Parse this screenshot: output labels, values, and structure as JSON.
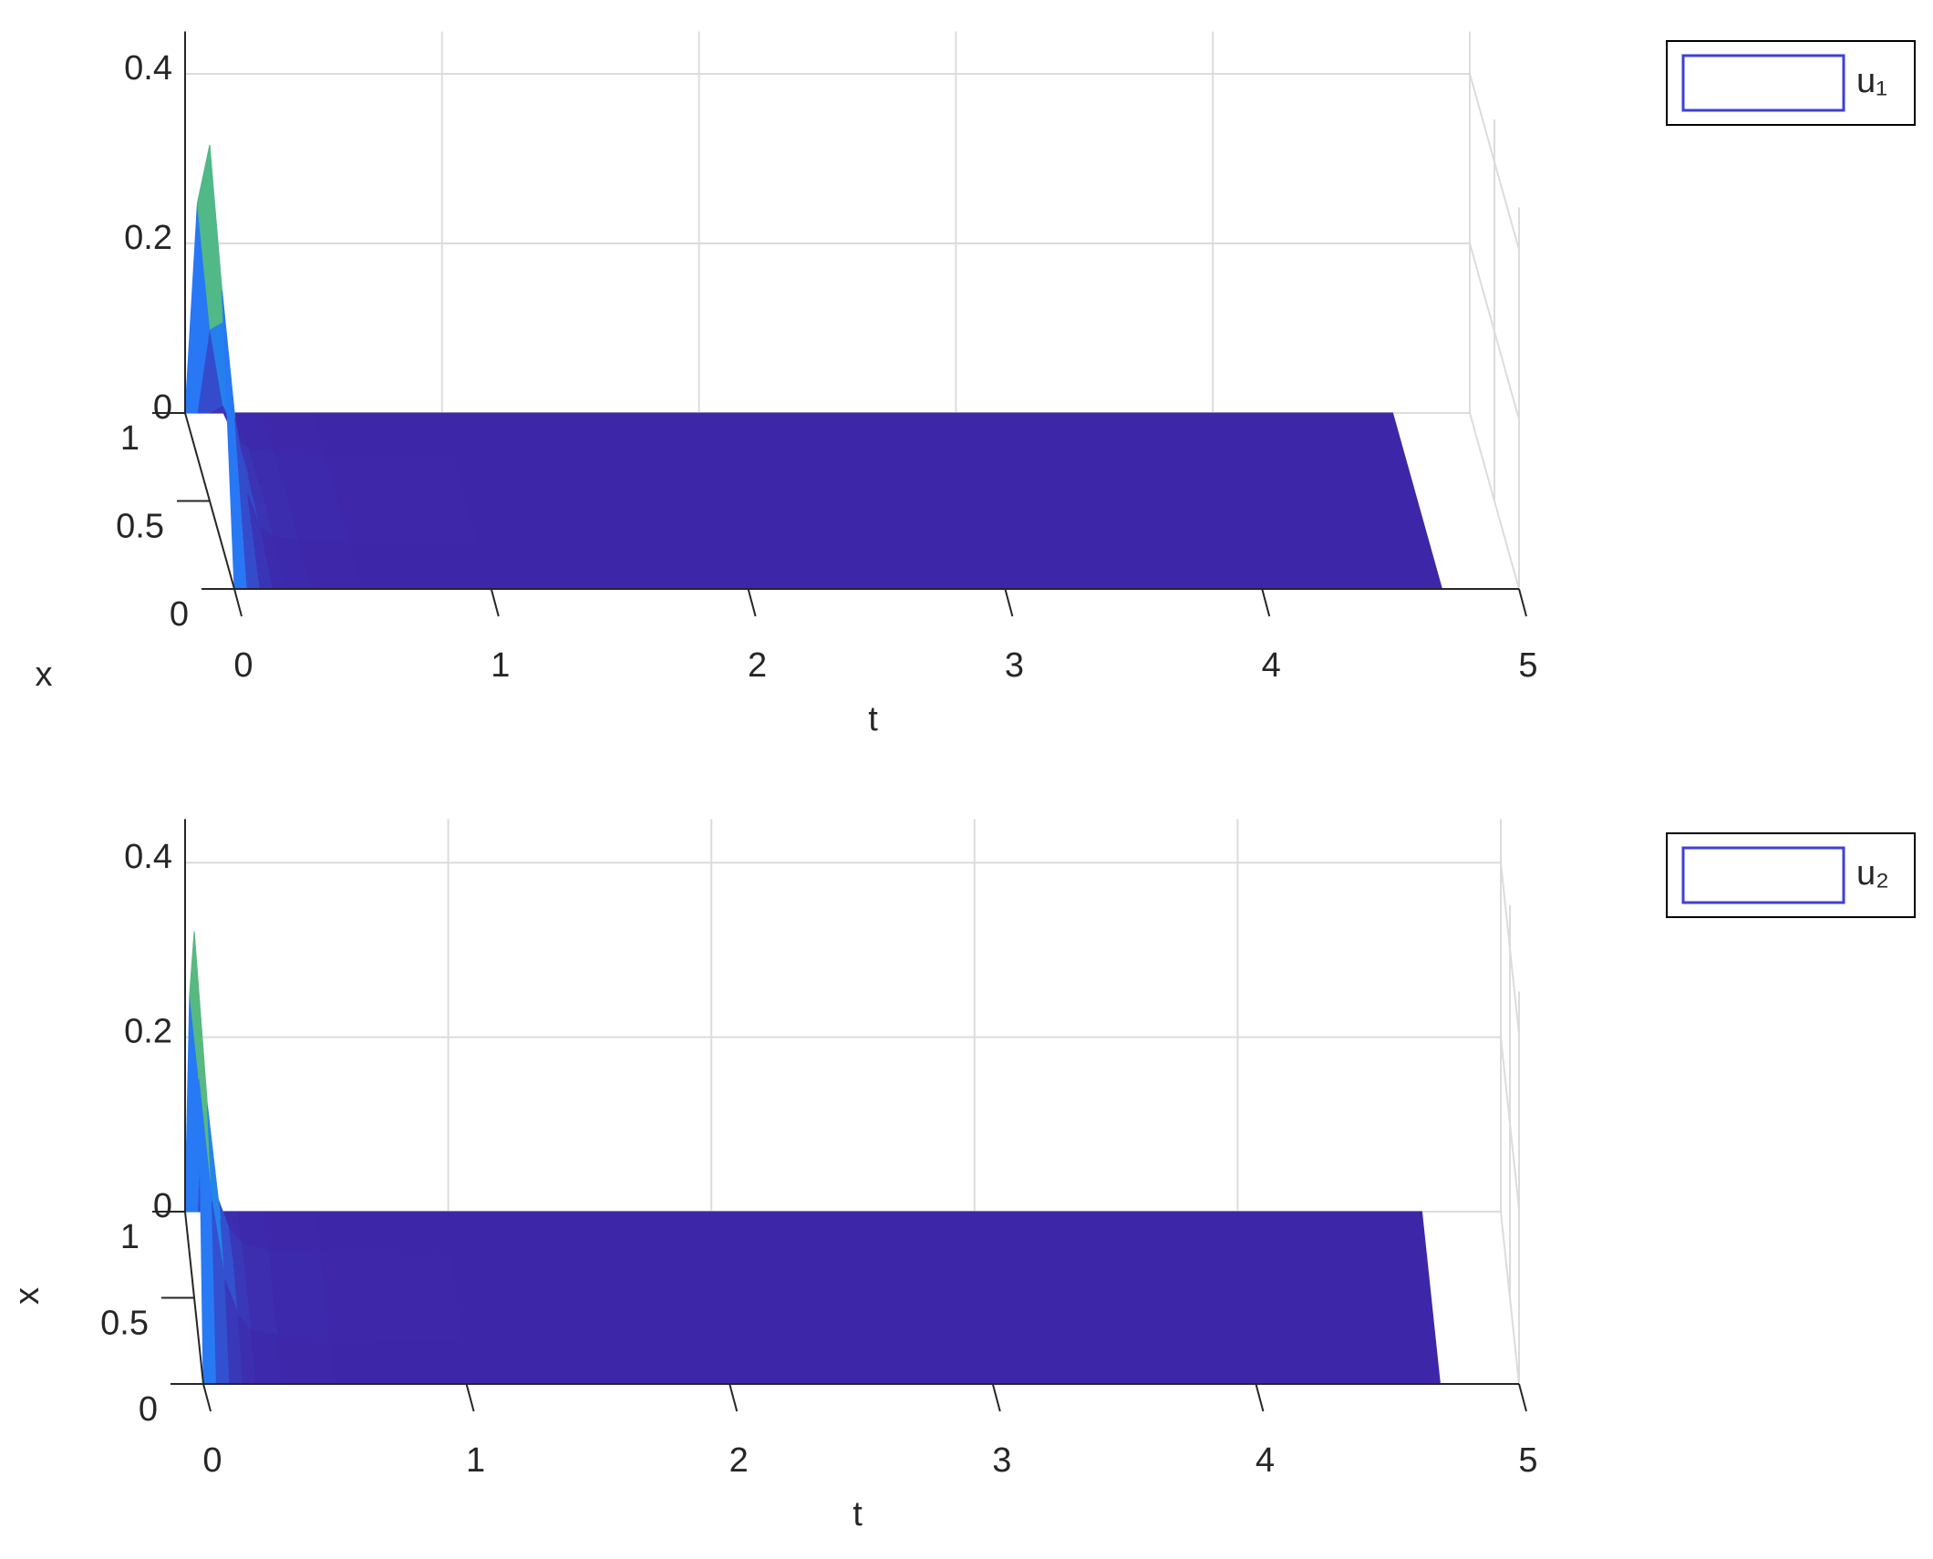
{
  "chart_data": [
    {
      "type": "surface",
      "xlabel": "t",
      "ylabel": "x",
      "t_grid": [
        0,
        0.05,
        0.1,
        0.15,
        0.2,
        0.3,
        0.5,
        1,
        2,
        3,
        4,
        4.7
      ],
      "x_grid": [
        0,
        0.25,
        0.5,
        0.75,
        1
      ],
      "values": [
        [
          0,
          0.3,
          0.42,
          0.3,
          0
        ],
        [
          0,
          0.15,
          0.21,
          0.15,
          0
        ],
        [
          0,
          0.06,
          0.08,
          0.06,
          0
        ],
        [
          0,
          0.02,
          0.03,
          0.02,
          0
        ],
        [
          0,
          0.01,
          0.015,
          0.01,
          0
        ],
        [
          0,
          0.005,
          0.008,
          0.005,
          0
        ],
        [
          0,
          0.002,
          0.003,
          0.002,
          0
        ],
        [
          0,
          0,
          0,
          0,
          0
        ],
        [
          0,
          0,
          0,
          0,
          0
        ],
        [
          0,
          0,
          0,
          0,
          0
        ],
        [
          0,
          0,
          0,
          0,
          0
        ],
        [
          0,
          0,
          0,
          0,
          0
        ]
      ],
      "xlim": [
        0,
        5
      ],
      "xticks": [
        0,
        1,
        2,
        3,
        4,
        5
      ],
      "ylim": [
        0,
        1
      ],
      "yticks": [
        0,
        0.5,
        1
      ],
      "zlim": [
        0,
        0.45
      ],
      "zticks": [
        0,
        0.2,
        0.4
      ],
      "series": [
        {
          "name": "u₁",
          "color": "#3f3fd8"
        }
      ],
      "grid": true,
      "legend": "upper right"
    },
    {
      "type": "surface",
      "xlabel": "t",
      "ylabel": "x",
      "t_grid": [
        0,
        0.05,
        0.1,
        0.15,
        0.2,
        0.3,
        0.5,
        1,
        2,
        3,
        4,
        4.7
      ],
      "x_grid": [
        0,
        0.25,
        0.5,
        0.75,
        1
      ],
      "values": [
        [
          0,
          0.3,
          0.42,
          0.3,
          0
        ],
        [
          0,
          0.16,
          0.22,
          0.16,
          0
        ],
        [
          0,
          0.07,
          0.09,
          0.07,
          0
        ],
        [
          0,
          0.03,
          0.04,
          0.03,
          0
        ],
        [
          0,
          0.012,
          0.016,
          0.012,
          0
        ],
        [
          0,
          0.006,
          0.008,
          0.006,
          0
        ],
        [
          0,
          0.002,
          0.003,
          0.002,
          0
        ],
        [
          0,
          0,
          0,
          0,
          0
        ],
        [
          0,
          0,
          0,
          0,
          0
        ],
        [
          0,
          0,
          0,
          0,
          0
        ],
        [
          0,
          0,
          0,
          0,
          0
        ],
        [
          0,
          0,
          0,
          0,
          0
        ]
      ],
      "xlim": [
        0,
        5
      ],
      "xticks": [
        0,
        1,
        2,
        3,
        4,
        5
      ],
      "ylim": [
        0,
        1
      ],
      "yticks": [
        0,
        0.5,
        1
      ],
      "zlim": [
        0,
        0.45
      ],
      "zticks": [
        0,
        0.2,
        0.4
      ],
      "series": [
        {
          "name": "u₂",
          "color": "#3f3fd8"
        }
      ],
      "grid": true,
      "legend": "upper right"
    }
  ]
}
